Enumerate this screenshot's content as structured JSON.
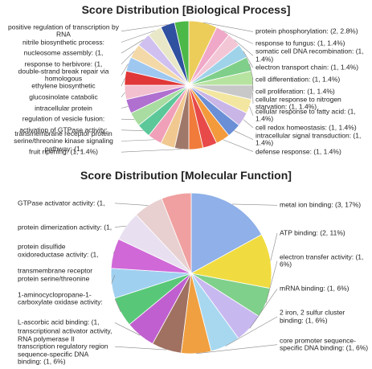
{
  "chart_data": [
    {
      "type": "pie",
      "title": "Score Distribution [Biological Process]",
      "categories": [
        "protein phosphorylation: (2, 2.8%)",
        "response to fungus: (1, 1.4%)",
        "somatic cell DNA recombination: (1, 1.4%)",
        "electron transport chain: (1, 1.4%)",
        "cell differentiation: (1, 1.4%)",
        "cell proliferation: (1, 1.4%)",
        "cellular response to nitrogen starvation: (1, 1.4%)",
        "cellular response to fatty acid: (1, 1.4%)",
        "cell redox homeostasis: (1, 1.4%)",
        "intracellular signal transduction: (1, 1.4%)",
        "defense response: (1, 1.4%)",
        null,
        null,
        "fruit ripening: (1, 1.4%)",
        null,
        "transmembrane receptor protein serine/threonine kinase signaling pathway: (1,",
        "activation of GTPase activity:",
        "regulation of vesicle fusion:",
        "intracellular protein",
        "glucosinolate catabolic",
        "ethylene biosynthetic",
        "double-strand break repair via homologous",
        "response to herbivore: (1,",
        "nucleosome assembly: (1,",
        "nitrile biosynthetic process:",
        "positive regulation of transcription by RNA",
        null
      ],
      "values": [
        2.8,
        1.4,
        1.4,
        1.4,
        1.4,
        1.4,
        1.4,
        1.4,
        1.4,
        1.4,
        1.4,
        1.4,
        1.4,
        1.4,
        1.4,
        1.4,
        1.4,
        1.4,
        1.4,
        1.4,
        1.4,
        1.4,
        1.4,
        1.4,
        1.4,
        1.4,
        1.4
      ],
      "colors": [
        "#eccd5a",
        "#f0a8c8",
        "#f3c6d6",
        "#9fd3ea",
        "#7fcf8a",
        "#b7e3a0",
        "#c8c8c8",
        "#f3e6a0",
        "#c9b5e6",
        "#6a8fd6",
        "#f39a3c",
        "#e84a4a",
        "#f07b3a",
        "#a0786a",
        "#f0c890",
        "#f0a0b8",
        "#5cc89a",
        "#a8dca0",
        "#b070d0",
        "#f3c0d0",
        "#e03838",
        "#9fc8f0",
        "#f3d8a8",
        "#d0c0f0",
        "#e8e8c8",
        "#3050a0",
        "#4cb848"
      ]
    },
    {
      "type": "pie",
      "title": "Score Distribution [Molecular Function]",
      "categories": [
        "metal ion binding: (3, 17%)",
        "ATP binding: (2, 11%)",
        "electron transfer activity: (1, 6%)",
        "mRNA binding: (1, 6%)",
        "2 iron, 2 sulfur cluster binding: (1, 6%)",
        "core promoter sequence-specific DNA binding: (1, 6%)",
        "transcriptional activator activity, RNA polymerase II transcription regulatory region sequence-specific DNA binding: (1, 6%)",
        "L-ascorbic acid binding: (1,",
        "1-aminocyclopropane-1-carboxylate oxidase activity:",
        "transmembrane receptor protein serine/threonine",
        "protein disulfide oxidoreductase activity: (1,",
        "protein dimerization activity: (1,",
        "GTPase activator activity: (1,",
        null
      ],
      "values": [
        17,
        11,
        6,
        6,
        6,
        6,
        6,
        6,
        6,
        6,
        6,
        6,
        6,
        6
      ],
      "colors": [
        "#8fb0e8",
        "#f0dc40",
        "#7fd08a",
        "#c8b8f0",
        "#a8d8f0",
        "#f0a040",
        "#a07060",
        "#c060d0",
        "#58c878",
        "#a0d0f0",
        "#d068d8",
        "#e8e0f0",
        "#e8d0d0",
        "#f0a0a0"
      ]
    }
  ]
}
